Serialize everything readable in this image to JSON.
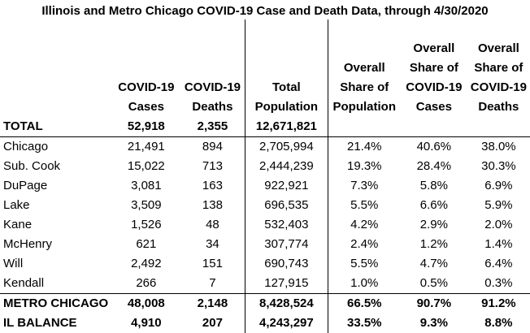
{
  "title": "Illinois and Metro Chicago COVID-19 Case and Death Data, through 4/30/2020",
  "columns": {
    "cases": [
      "COVID-19",
      "Cases"
    ],
    "deaths": [
      "COVID-19",
      "Deaths"
    ],
    "population": [
      "Total",
      "Population"
    ],
    "share_population": [
      "Overall",
      "Share of",
      "Population"
    ],
    "share_cases": [
      "Overall",
      "Share of",
      "COVID-19",
      "Cases"
    ],
    "share_deaths": [
      "Overall",
      "Share of",
      "COVID-19",
      "Deaths"
    ]
  },
  "rows": [
    {
      "name": "TOTAL",
      "cases": "52,918",
      "deaths": "2,355",
      "population": "12,671,821",
      "share_population": "",
      "share_cases": "",
      "share_deaths": "",
      "bold": true
    },
    {
      "name": "Chicago",
      "cases": "21,491",
      "deaths": "894",
      "population": "2,705,994",
      "share_population": "21.4%",
      "share_cases": "40.6%",
      "share_deaths": "38.0%",
      "bold": false
    },
    {
      "name": "Sub. Cook",
      "cases": "15,022",
      "deaths": "713",
      "population": "2,444,239",
      "share_population": "19.3%",
      "share_cases": "28.4%",
      "share_deaths": "30.3%",
      "bold": false
    },
    {
      "name": "DuPage",
      "cases": "3,081",
      "deaths": "163",
      "population": "922,921",
      "share_population": "7.3%",
      "share_cases": "5.8%",
      "share_deaths": "6.9%",
      "bold": false
    },
    {
      "name": "Lake",
      "cases": "3,509",
      "deaths": "138",
      "population": "696,535",
      "share_population": "5.5%",
      "share_cases": "6.6%",
      "share_deaths": "5.9%",
      "bold": false
    },
    {
      "name": "Kane",
      "cases": "1,526",
      "deaths": "48",
      "population": "532,403",
      "share_population": "4.2%",
      "share_cases": "2.9%",
      "share_deaths": "2.0%",
      "bold": false
    },
    {
      "name": "McHenry",
      "cases": "621",
      "deaths": "34",
      "population": "307,774",
      "share_population": "2.4%",
      "share_cases": "1.2%",
      "share_deaths": "1.4%",
      "bold": false
    },
    {
      "name": "Will",
      "cases": "2,492",
      "deaths": "151",
      "population": "690,743",
      "share_population": "5.5%",
      "share_cases": "4.7%",
      "share_deaths": "6.4%",
      "bold": false
    },
    {
      "name": "Kendall",
      "cases": "266",
      "deaths": "7",
      "population": "127,915",
      "share_population": "1.0%",
      "share_cases": "0.5%",
      "share_deaths": "0.3%",
      "bold": false
    },
    {
      "name": "METRO CHICAGO",
      "cases": "48,008",
      "deaths": "2,148",
      "population": "8,428,524",
      "share_population": "66.5%",
      "share_cases": "90.7%",
      "share_deaths": "91.2%",
      "bold": true
    },
    {
      "name": "IL BALANCE",
      "cases": "4,910",
      "deaths": "207",
      "population": "4,243,297",
      "share_population": "33.5%",
      "share_cases": "9.3%",
      "share_deaths": "8.8%",
      "bold": true
    }
  ]
}
